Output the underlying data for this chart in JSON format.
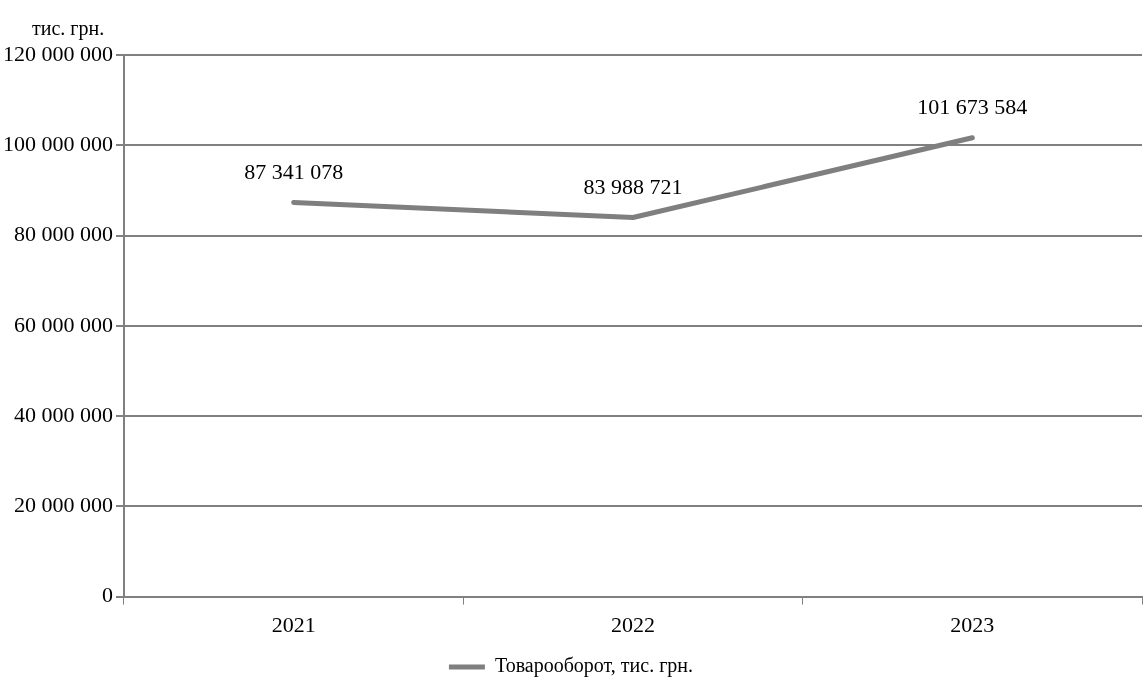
{
  "chart_data": {
    "type": "line",
    "ylabel": "тис. грн.",
    "categories": [
      "2021",
      "2022",
      "2023"
    ],
    "series": [
      {
        "name": "Товарооборот, тис. грн.",
        "color": "#7f7f7f",
        "values": [
          87341078,
          83988721,
          101673584
        ]
      }
    ],
    "value_labels": [
      "87 341 078",
      "83 988 721",
      "101 673 584"
    ],
    "ylim": [
      0,
      120000000
    ],
    "yticks": [
      0,
      {
        "value": 20000000,
        "label": "20 000 000"
      },
      {
        "value": 40000000,
        "label": "40 000 000"
      },
      {
        "value": 60000000,
        "label": "60 000 000"
      },
      {
        "value": 80000000,
        "label": "80 000 000"
      },
      {
        "value": 100000000,
        "label": "100 000 000"
      },
      {
        "value": 120000000,
        "label": "120 000 000"
      }
    ],
    "grid": "y",
    "legend": "bottom",
    "marker": "none",
    "line_style": "solid"
  }
}
